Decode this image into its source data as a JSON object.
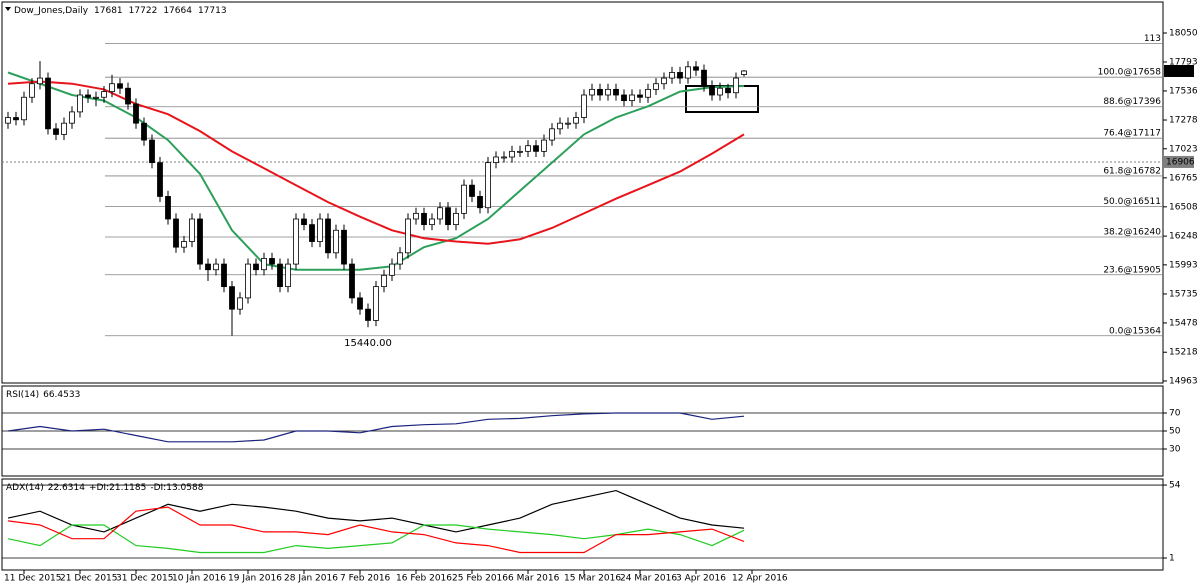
{
  "chart_data": [
    {
      "type": "candlestick",
      "title": "Dow_Jones,Daily",
      "candles": [
        [
          17250,
          17350,
          17200,
          17300
        ],
        [
          17300,
          17350,
          17230,
          17280
        ],
        [
          17280,
          17530,
          17230,
          17480
        ],
        [
          17480,
          17650,
          17430,
          17600
        ],
        [
          17600,
          17800,
          17550,
          17650
        ],
        [
          17650,
          17700,
          17150,
          17200
        ],
        [
          17200,
          17250,
          17100,
          17150
        ],
        [
          17150,
          17300,
          17100,
          17250
        ],
        [
          17250,
          17400,
          17200,
          17350
        ],
        [
          17350,
          17550,
          17300,
          17500
        ],
        [
          17500,
          17550,
          17430,
          17480
        ],
        [
          17480,
          17530,
          17400,
          17480
        ],
        [
          17480,
          17580,
          17430,
          17530
        ],
        [
          17530,
          17680,
          17480,
          17600
        ],
        [
          17600,
          17650,
          17510,
          17560
        ],
        [
          17560,
          17610,
          17370,
          17420
        ],
        [
          17420,
          17470,
          17200,
          17250
        ],
        [
          17250,
          17300,
          17050,
          17100
        ],
        [
          17100,
          17150,
          16850,
          16900
        ],
        [
          16900,
          16950,
          16550,
          16600
        ],
        [
          16600,
          16650,
          16350,
          16400
        ],
        [
          16400,
          16450,
          16100,
          16150
        ],
        [
          16150,
          16250,
          16100,
          16200
        ],
        [
          16200,
          16450,
          16150,
          16400
        ],
        [
          16400,
          16450,
          15950,
          16000
        ],
        [
          16000,
          16050,
          15850,
          15950
        ],
        [
          15950,
          16050,
          15900,
          16000
        ],
        [
          16000,
          16050,
          15750,
          15800
        ],
        [
          15800,
          15850,
          15364,
          15600
        ],
        [
          15600,
          15750,
          15550,
          15700
        ],
        [
          15700,
          16050,
          15650,
          16000
        ],
        [
          16000,
          16050,
          15900,
          15950
        ],
        [
          15950,
          16100,
          15900,
          16050
        ],
        [
          16050,
          16100,
          15950,
          16000
        ],
        [
          16000,
          16050,
          15750,
          15800
        ],
        [
          15800,
          16050,
          15750,
          16000
        ],
        [
          16000,
          16450,
          15950,
          16400
        ],
        [
          16400,
          16450,
          16300,
          16350
        ],
        [
          16350,
          16400,
          16150,
          16200
        ],
        [
          16200,
          16450,
          16150,
          16400
        ],
        [
          16400,
          16450,
          16050,
          16100
        ],
        [
          16100,
          16350,
          16050,
          16300
        ],
        [
          16300,
          16350,
          15950,
          16000
        ],
        [
          16000,
          16050,
          15650,
          15700
        ],
        [
          15700,
          15750,
          15550,
          15600
        ],
        [
          15600,
          15650,
          15440,
          15500
        ],
        [
          15500,
          15850,
          15450,
          15800
        ],
        [
          15800,
          15950,
          15750,
          15900
        ],
        [
          15900,
          16050,
          15850,
          16000
        ],
        [
          16000,
          16150,
          15950,
          16100
        ],
        [
          16100,
          16450,
          16050,
          16400
        ],
        [
          16400,
          16500,
          16350,
          16450
        ],
        [
          16450,
          16500,
          16300,
          16350
        ],
        [
          16350,
          16450,
          16300,
          16400
        ],
        [
          16400,
          16550,
          16350,
          16500
        ],
        [
          16500,
          16550,
          16300,
          16350
        ],
        [
          16350,
          16500,
          16300,
          16450
        ],
        [
          16450,
          16750,
          16400,
          16700
        ],
        [
          16700,
          16750,
          16550,
          16600
        ],
        [
          16600,
          16650,
          16450,
          16500
        ],
        [
          16500,
          16950,
          16450,
          16900
        ],
        [
          16900,
          17000,
          16850,
          16950
        ],
        [
          16950,
          17000,
          16900,
          16950
        ],
        [
          16950,
          17050,
          16900,
          17000
        ],
        [
          17000,
          17050,
          16950,
          17000
        ],
        [
          17000,
          17100,
          16950,
          17050
        ],
        [
          17050,
          17100,
          16950,
          17000
        ],
        [
          17000,
          17150,
          16950,
          17100
        ],
        [
          17100,
          17250,
          17050,
          17200
        ],
        [
          17200,
          17300,
          17150,
          17250
        ],
        [
          17250,
          17300,
          17200,
          17250
        ],
        [
          17250,
          17350,
          17200,
          17300
        ],
        [
          17300,
          17550,
          17250,
          17500
        ],
        [
          17500,
          17600,
          17450,
          17550
        ],
        [
          17550,
          17600,
          17450,
          17500
        ],
        [
          17500,
          17600,
          17450,
          17550
        ],
        [
          17550,
          17600,
          17450,
          17500
        ],
        [
          17500,
          17550,
          17400,
          17450
        ],
        [
          17450,
          17550,
          17400,
          17500
        ],
        [
          17500,
          17550,
          17430,
          17480
        ],
        [
          17480,
          17600,
          17430,
          17550
        ],
        [
          17550,
          17650,
          17500,
          17600
        ],
        [
          17600,
          17700,
          17550,
          17650
        ],
        [
          17650,
          17750,
          17600,
          17700
        ],
        [
          17700,
          17750,
          17600,
          17650
        ],
        [
          17650,
          17800,
          17600,
          17750
        ],
        [
          17750,
          17800,
          17670,
          17720
        ],
        [
          17720,
          17770,
          17530,
          17580
        ],
        [
          17580,
          17630,
          17450,
          17500
        ],
        [
          17500,
          17610,
          17450,
          17560
        ],
        [
          17560,
          17600,
          17470,
          17520
        ],
        [
          17520,
          17700,
          17470,
          17650
        ],
        [
          17681,
          17722,
          17664,
          17713
        ]
      ],
      "x": [
        0,
        4,
        8,
        12,
        16,
        20,
        24,
        28,
        32,
        36,
        40,
        44,
        48,
        52,
        56,
        60,
        64,
        68,
        72,
        76,
        80,
        84,
        88,
        92
      ],
      "series": [
        {
          "color": "#2ca05a",
          "values": [
            17700,
            17600,
            17500,
            17450,
            17300,
            17100,
            16800,
            16300,
            16000,
            15950,
            15950,
            15950,
            15980,
            16150,
            16230,
            16400,
            16650,
            16900,
            17150,
            17300,
            17400,
            17530,
            17570,
            17580
          ]
        },
        {
          "color": "#e8141b",
          "values": [
            17600,
            17620,
            17600,
            17550,
            17420,
            17330,
            17180,
            17000,
            16850,
            16700,
            16550,
            16420,
            16300,
            16230,
            16200,
            16180,
            16220,
            16320,
            16450,
            16580,
            16700,
            16820,
            16980,
            17150
          ]
        }
      ],
      "levels": [
        {
          "value": 17956,
          "label": "113"
        },
        {
          "value": 17658,
          "label": "100.0@17658"
        },
        {
          "value": 17396,
          "label": "88.6@17396"
        },
        {
          "value": 17117,
          "label": "76.4@17117"
        },
        {
          "value": 16782,
          "label": "61.8@16782"
        },
        {
          "value": 16511,
          "label": "50.0@16511"
        },
        {
          "value": 16240,
          "label": "38.2@16240"
        },
        {
          "value": 15905,
          "label": "23.6@15905"
        },
        {
          "value": 15364,
          "label": "0.0@15364"
        }
      ],
      "hline": 16906,
      "annotation": {
        "x": 45,
        "value": 15440,
        "label": "15440.00"
      },
      "xlim": [
        -0.75,
        144.375
      ],
      "ylim": [
        14945,
        18325
      ],
      "yticks": [
        18050,
        17793,
        17536,
        17278,
        17023,
        16765,
        16508,
        16248,
        15993,
        15735,
        15478,
        15218,
        14963
      ]
    },
    {
      "type": "line",
      "title": "RSI(14)",
      "x": [
        0,
        4,
        8,
        12,
        16,
        20,
        24,
        28,
        32,
        36,
        40,
        44,
        48,
        52,
        56,
        60,
        64,
        68,
        72,
        76,
        80,
        84,
        88,
        92
      ],
      "series": [
        {
          "color": "#1a237e",
          "values": [
            50,
            55,
            50,
            52,
            45,
            38,
            38,
            38,
            40,
            50,
            50,
            48,
            55,
            57,
            58,
            63,
            64,
            67,
            69,
            70,
            70,
            70,
            63,
            66.4533
          ]
        }
      ],
      "xlim": [
        -0.75,
        144.375
      ],
      "ylim": [
        0,
        100
      ],
      "yticks": [
        70,
        50,
        30
      ]
    },
    {
      "type": "line",
      "title": "ADX(14)",
      "x": [
        0,
        4,
        8,
        12,
        16,
        20,
        24,
        28,
        32,
        36,
        40,
        44,
        48,
        52,
        56,
        60,
        64,
        68,
        72,
        76,
        80,
        84,
        88,
        92
      ],
      "series": [
        {
          "color": "#000000",
          "values": [
            30,
            35,
            25,
            20,
            30,
            40,
            35,
            40,
            38,
            35,
            30,
            28,
            30,
            25,
            20,
            25,
            30,
            40,
            45,
            50,
            40,
            30,
            25,
            22.6314
          ]
        },
        {
          "name": "+DI:",
          "color": "#22cc22",
          "values": [
            15,
            10,
            25,
            25,
            10,
            8,
            5,
            5,
            5,
            10,
            8,
            10,
            12,
            25,
            25,
            22,
            20,
            18,
            15,
            18,
            22,
            18,
            10,
            21.1185
          ]
        },
        {
          "name": "-DI:",
          "color": "#ff0000",
          "values": [
            28,
            25,
            15,
            15,
            35,
            38,
            25,
            25,
            20,
            20,
            18,
            25,
            20,
            18,
            12,
            10,
            5,
            5,
            5,
            18,
            18,
            20,
            22,
            13.0588
          ]
        }
      ],
      "xlim": [
        -0.75,
        144.375
      ],
      "ylim": [
        -7.7,
        58.4
      ],
      "yticks": [
        54,
        1
      ],
      "xticks": [
        {
          "value": 2,
          "label": "11 Dec 2015"
        },
        {
          "value": 9,
          "label": "21 Dec 2015"
        },
        {
          "value": 16,
          "label": "31 Dec 2015"
        },
        {
          "value": 23,
          "label": "10 Jan 2016"
        },
        {
          "value": 30,
          "label": "19 Jan 2016"
        },
        {
          "value": 37,
          "label": "28 Jan 2016"
        },
        {
          "value": 44,
          "label": "7 Feb 2016"
        },
        {
          "value": 51,
          "label": "16 Feb 2016"
        },
        {
          "value": 58,
          "label": "25 Feb 2016"
        },
        {
          "value": 65,
          "label": "6 Mar 2016"
        },
        {
          "value": 72,
          "label": "15 Mar 2016"
        },
        {
          "value": 79,
          "label": "24 Mar 2016"
        },
        {
          "value": 86,
          "label": "3 Apr 2016"
        },
        {
          "value": 93,
          "label": "12 Apr 2016"
        }
      ]
    }
  ]
}
